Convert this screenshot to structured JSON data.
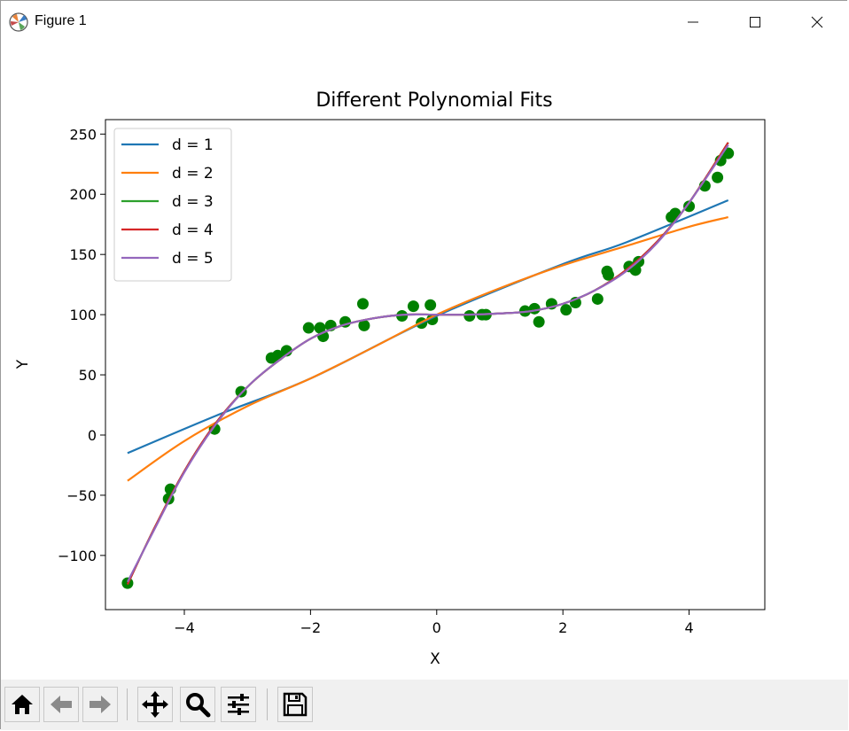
{
  "window": {
    "title": "Figure 1",
    "controls": [
      "minimize",
      "maximize",
      "close"
    ]
  },
  "toolbar": {
    "buttons": [
      {
        "name": "home",
        "icon": "home-icon"
      },
      {
        "name": "back",
        "icon": "arrow-left-icon"
      },
      {
        "name": "forward",
        "icon": "arrow-right-icon"
      },
      {
        "name": "pan",
        "icon": "move-icon"
      },
      {
        "name": "zoom",
        "icon": "magnifier-icon"
      },
      {
        "name": "configure",
        "icon": "sliders-icon"
      },
      {
        "name": "save",
        "icon": "floppy-icon"
      }
    ]
  },
  "chart_data": {
    "type": "scatter",
    "title": "Different Polynomial Fits",
    "xlabel": "X",
    "ylabel": "Y",
    "xlim": [
      -5.25,
      5.2
    ],
    "ylim": [
      -145,
      262
    ],
    "xticks": [
      -4,
      -2,
      0,
      2,
      4
    ],
    "xtick_labels": [
      "−4",
      "−2",
      "0",
      "2",
      "4"
    ],
    "yticks": [
      -100,
      -50,
      0,
      50,
      100,
      150,
      200,
      250
    ],
    "ytick_labels": [
      "−100",
      "−50",
      "0",
      "50",
      "100",
      "150",
      "200",
      "250"
    ],
    "grid": false,
    "legend_position": "top-left",
    "points": {
      "color": "#008000",
      "x": [
        -4.9,
        -4.25,
        -4.22,
        -3.52,
        -3.1,
        -2.62,
        -2.52,
        -2.38,
        -2.03,
        -1.85,
        -1.8,
        -1.68,
        -1.45,
        -1.17,
        -1.15,
        -0.55,
        -0.37,
        -0.24,
        -0.1,
        -0.07,
        0.52,
        0.72,
        0.78,
        1.4,
        1.55,
        1.62,
        1.82,
        2.05,
        2.2,
        2.55,
        2.7,
        2.72,
        3.05,
        3.15,
        3.2,
        3.72,
        3.78,
        4.0,
        4.25,
        4.45,
        4.5,
        4.62
      ],
      "y": [
        -123,
        -53,
        -45,
        5,
        36,
        64,
        66,
        70,
        89,
        89,
        82,
        91,
        94,
        109,
        91,
        99,
        107,
        93,
        108,
        96,
        99,
        100,
        100,
        103,
        105,
        94,
        109,
        104,
        110,
        113,
        136,
        133,
        140,
        137,
        144,
        181,
        184,
        190,
        207,
        214,
        228,
        234
      ]
    },
    "series": [
      {
        "name": "d = 1",
        "color": "#1f77b4",
        "x": [
          -4.9,
          -3.5,
          -2.0,
          0.0,
          2.0,
          3.0,
          4.62
        ],
        "y": [
          -15,
          16,
          47,
          99,
          142,
          160,
          195
        ]
      },
      {
        "name": "d = 2",
        "color": "#ff7f0e",
        "x": [
          -4.9,
          -4.0,
          -3.0,
          -2.0,
          -1.0,
          0.0,
          1.0,
          2.0,
          3.0,
          4.0,
          4.62
        ],
        "y": [
          -38,
          -5,
          24,
          47,
          73,
          100,
          122,
          141,
          157,
          173,
          181
        ]
      },
      {
        "name": "d = 3",
        "color": "#2ca02c",
        "x": [
          -4.9,
          -4.5,
          -4.0,
          -3.5,
          -3.0,
          -2.5,
          -2.0,
          -1.5,
          -1.0,
          -0.5,
          0.0,
          0.5,
          1.0,
          1.5,
          2.0,
          2.5,
          3.0,
          3.5,
          4.0,
          4.62
        ],
        "y": [
          -124,
          -80,
          -30,
          10,
          40,
          62,
          80,
          91,
          97,
          100,
          100,
          100,
          101,
          103,
          109,
          120,
          137,
          161,
          193,
          243
        ]
      },
      {
        "name": "d = 4",
        "color": "#d62728",
        "x": [
          -4.9,
          -4.5,
          -4.0,
          -3.5,
          -3.0,
          -2.5,
          -2.0,
          -1.5,
          -1.0,
          -0.5,
          0.0,
          0.5,
          1.0,
          1.5,
          2.0,
          2.5,
          3.0,
          3.5,
          4.0,
          4.62
        ],
        "y": [
          -124,
          -80,
          -30,
          10,
          40,
          62,
          80,
          91,
          97,
          100,
          100,
          100,
          101,
          103,
          109,
          120,
          137,
          161,
          193,
          243
        ]
      },
      {
        "name": "d = 5",
        "color": "#9467bd",
        "x": [
          -4.9,
          -4.5,
          -4.0,
          -3.5,
          -3.0,
          -2.5,
          -2.0,
          -1.5,
          -1.0,
          -0.5,
          0.0,
          0.5,
          1.0,
          1.5,
          2.0,
          2.5,
          3.0,
          3.5,
          4.0,
          4.62
        ],
        "y": [
          -122,
          -81,
          -31,
          9,
          40,
          62,
          80,
          91,
          97,
          100,
          100,
          100,
          101,
          103,
          109,
          120,
          136,
          160,
          193,
          241
        ]
      }
    ]
  }
}
